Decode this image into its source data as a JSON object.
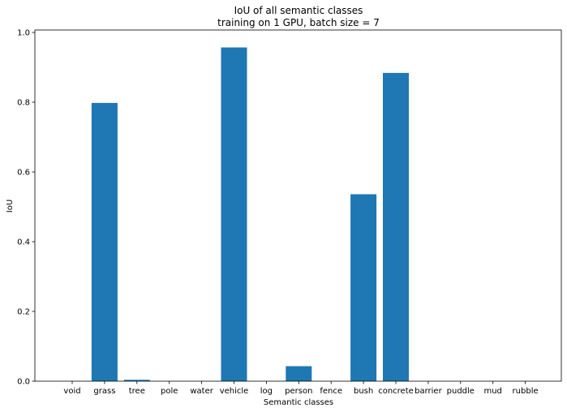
{
  "chart_data": {
    "type": "bar",
    "title": "IoU of all semantic classes",
    "subtitle": "training on 1 GPU, batch size = 7",
    "xlabel": "Semantic classes",
    "ylabel": "IoU",
    "categories": [
      "void",
      "grass",
      "tree",
      "pole",
      "water",
      "vehicle",
      "log",
      "person",
      "fence",
      "bush",
      "concrete",
      "barrier",
      "puddle",
      "mud",
      "rubble"
    ],
    "values": [
      0,
      0.798,
      0.004,
      0,
      0,
      0.957,
      0,
      0.043,
      0,
      0.536,
      0.884,
      0,
      0,
      0,
      0
    ],
    "ylim": [
      0,
      1.0
    ],
    "yticks": [
      0.0,
      0.2,
      0.4,
      0.6,
      0.8,
      1.0
    ],
    "ytick_labels": [
      "0.0",
      "0.2",
      "0.4",
      "0.6",
      "0.8",
      "1.0"
    ],
    "grid": false,
    "bar_color": "#1f77b4"
  }
}
